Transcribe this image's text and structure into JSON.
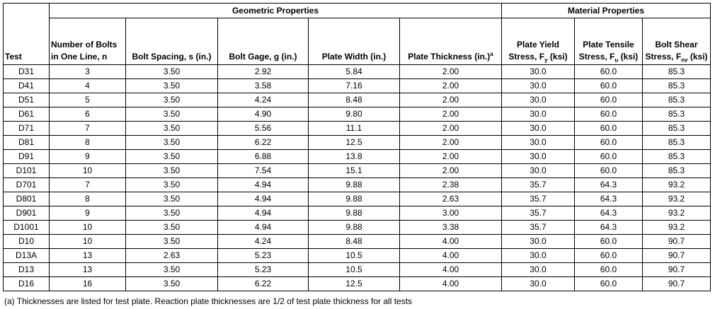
{
  "groups": {
    "geometric": "Geometric Properties",
    "material": "Material Properties"
  },
  "headers": {
    "test": "Test",
    "bolts_line1": "Number of Bolts",
    "bolts_line2": "in One Line, n",
    "spacing": "Bolt Spacing, s (in.)",
    "gage": "Bolt Gage, g (in.)",
    "width": "Plate Width (in.)",
    "thickness": "Plate Thickness (in.)",
    "thickness_sup": "a",
    "fy_line1": "Plate Yield",
    "fy_pre": "Stress, F",
    "fy_sub": "y",
    "fy_post": " (ksi)",
    "fu_line1": "Plate Tensile",
    "fu_pre": "Stress, F",
    "fu_sub": "u",
    "fu_post": " (ksi)",
    "fnv_line1": "Bolt Shear",
    "fnv_pre": "Stress, F",
    "fnv_sub": "nv",
    "fnv_post": " (ksi)"
  },
  "rows": [
    [
      "D31",
      "3",
      "3.50",
      "2.92",
      "5.84",
      "2.00",
      "30.0",
      "60.0",
      "85.3"
    ],
    [
      "D41",
      "4",
      "3.50",
      "3.58",
      "7.16",
      "2.00",
      "30.0",
      "60.0",
      "85.3"
    ],
    [
      "D51",
      "5",
      "3.50",
      "4.24",
      "8.48",
      "2.00",
      "30.0",
      "60.0",
      "85.3"
    ],
    [
      "D61",
      "6",
      "3.50",
      "4.90",
      "9.80",
      "2.00",
      "30.0",
      "60.0",
      "85.3"
    ],
    [
      "D71",
      "7",
      "3.50",
      "5.56",
      "11.1",
      "2.00",
      "30.0",
      "60.0",
      "85.3"
    ],
    [
      "D81",
      "8",
      "3.50",
      "6.22",
      "12.5",
      "2.00",
      "30.0",
      "60.0",
      "85.3"
    ],
    [
      "D91",
      "9",
      "3.50",
      "6.88",
      "13.8",
      "2.00",
      "30.0",
      "60.0",
      "85.3"
    ],
    [
      "D101",
      "10",
      "3.50",
      "7.54",
      "15.1",
      "2.00",
      "30.0",
      "60.0",
      "85.3"
    ],
    [
      "D701",
      "7",
      "3.50",
      "4.94",
      "9.88",
      "2.38",
      "35.7",
      "64.3",
      "93.2"
    ],
    [
      "D801",
      "8",
      "3.50",
      "4.94",
      "9.88",
      "2.63",
      "35.7",
      "64.3",
      "93.2"
    ],
    [
      "D901",
      "9",
      "3.50",
      "4.94",
      "9.88",
      "3.00",
      "35.7",
      "64.3",
      "93.2"
    ],
    [
      "D1001",
      "10",
      "3.50",
      "4.94",
      "9.88",
      "3.38",
      "35.7",
      "64.3",
      "93.2"
    ],
    [
      "D10",
      "10",
      "3.50",
      "4.24",
      "8.48",
      "4.00",
      "30.0",
      "60.0",
      "90.7"
    ],
    [
      "D13A",
      "13",
      "2.63",
      "5.23",
      "10.5",
      "4.00",
      "30.0",
      "60.0",
      "90.7"
    ],
    [
      "D13",
      "13",
      "3.50",
      "5.23",
      "10.5",
      "4.00",
      "30.0",
      "60.0",
      "90.7"
    ],
    [
      "D16",
      "16",
      "3.50",
      "6.22",
      "12.5",
      "4.00",
      "30.0",
      "60.0",
      "90.7"
    ]
  ],
  "footnote": "(a) Thicknesses are listed for test plate. Reaction plate thicknesses are 1/2 of test plate thickness for all tests"
}
